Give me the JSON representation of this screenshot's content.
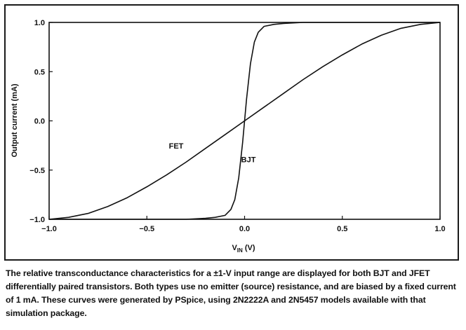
{
  "chart_data": {
    "type": "line",
    "xlabel": "V",
    "xlabel_sub": "IN",
    "xlabel_unit": " (V)",
    "ylabel": "Output current (mA)",
    "xlim": [
      -1.0,
      1.0
    ],
    "ylim": [
      -1.0,
      1.0
    ],
    "xticks": [
      -1.0,
      -0.5,
      0.0,
      0.5,
      1.0
    ],
    "xtick_labels": [
      "−1.0",
      "−0.5",
      "0.0",
      "0.5",
      "1.0"
    ],
    "yticks": [
      1.0,
      0.5,
      0.0,
      -0.5,
      -1.0
    ],
    "ytick_labels": [
      "1.0",
      "0.5",
      "0.0",
      "−0.5",
      "−1.0"
    ],
    "grid": false,
    "series": [
      {
        "name": "FET",
        "x": [
          -1.0,
          -0.9,
          -0.8,
          -0.7,
          -0.6,
          -0.5,
          -0.4,
          -0.3,
          -0.2,
          -0.1,
          0.0,
          0.1,
          0.2,
          0.3,
          0.4,
          0.5,
          0.6,
          0.7,
          0.8,
          0.9,
          1.0
        ],
        "y": [
          -1.0,
          -0.98,
          -0.94,
          -0.87,
          -0.78,
          -0.67,
          -0.55,
          -0.42,
          -0.28,
          -0.14,
          0.0,
          0.14,
          0.28,
          0.42,
          0.55,
          0.67,
          0.78,
          0.87,
          0.94,
          0.98,
          1.0
        ]
      },
      {
        "name": "BJT",
        "x": [
          -1.0,
          -0.3,
          -0.2,
          -0.15,
          -0.1,
          -0.07,
          -0.05,
          -0.03,
          -0.01,
          0.0,
          0.01,
          0.03,
          0.05,
          0.07,
          0.1,
          0.15,
          0.2,
          0.3,
          1.0
        ],
        "y": [
          -1.0,
          -1.0,
          -0.99,
          -0.98,
          -0.96,
          -0.9,
          -0.8,
          -0.58,
          -0.22,
          0.0,
          0.22,
          0.58,
          0.8,
          0.9,
          0.96,
          0.98,
          0.99,
          1.0,
          1.0
        ]
      }
    ],
    "annotations": [
      {
        "text": "FET",
        "x": -0.35,
        "y": -0.28
      },
      {
        "text": "BJT",
        "x": 0.02,
        "y": -0.42
      }
    ]
  },
  "caption": "The relative transconductance characteristics for a ±1-V input range are displayed for both BJT and JFET differentially paired transistors. Both types use no emitter (source) resistance, and are biased by a fixed current of 1 mA. These curves were generated by PSpice, using 2N2222A and 2N5457 models available with that simulation package."
}
